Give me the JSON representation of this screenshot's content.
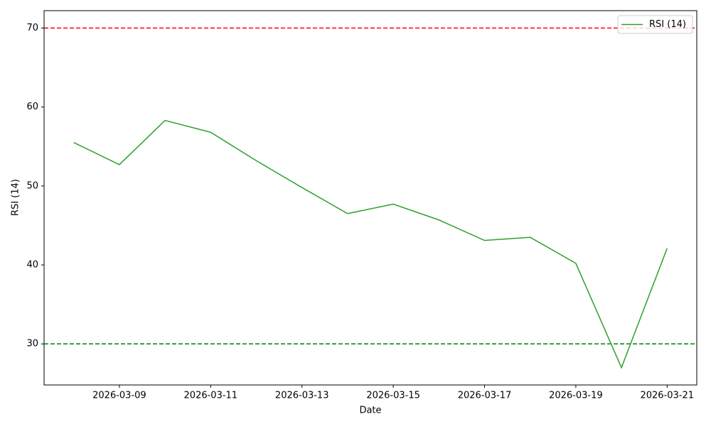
{
  "chart_data": {
    "type": "line",
    "xlabel": "Date",
    "ylabel": "RSI (14)",
    "x": [
      "2026-03-08",
      "2026-03-09",
      "2026-03-10",
      "2026-03-11",
      "2026-03-12",
      "2026-03-13",
      "2026-03-14",
      "2026-03-15",
      "2026-03-16",
      "2026-03-17",
      "2026-03-18",
      "2026-03-19",
      "2026-03-20",
      "2026-03-21"
    ],
    "series": [
      {
        "name": "RSI (14)",
        "color": "#2ca02c",
        "values": [
          55.5,
          52.7,
          58.3,
          56.8,
          53.2,
          49.8,
          46.5,
          47.7,
          45.7,
          43.1,
          43.5,
          40.2,
          27.0,
          42.1
        ]
      }
    ],
    "xlim": [
      "2026-03-07T08:24:00",
      "2026-03-21T15:36:00"
    ],
    "xticks": [
      "2026-03-09",
      "2026-03-11",
      "2026-03-13",
      "2026-03-15",
      "2026-03-17",
      "2026-03-19",
      "2026-03-21"
    ],
    "ylim": [
      24.8,
      72.2
    ],
    "yticks": [
      30,
      40,
      50,
      60,
      70
    ],
    "hlines": [
      {
        "value": 70,
        "color": "#ff0000"
      },
      {
        "value": 30,
        "color": "#008000"
      }
    ],
    "legend": "upper right",
    "grid": false
  }
}
